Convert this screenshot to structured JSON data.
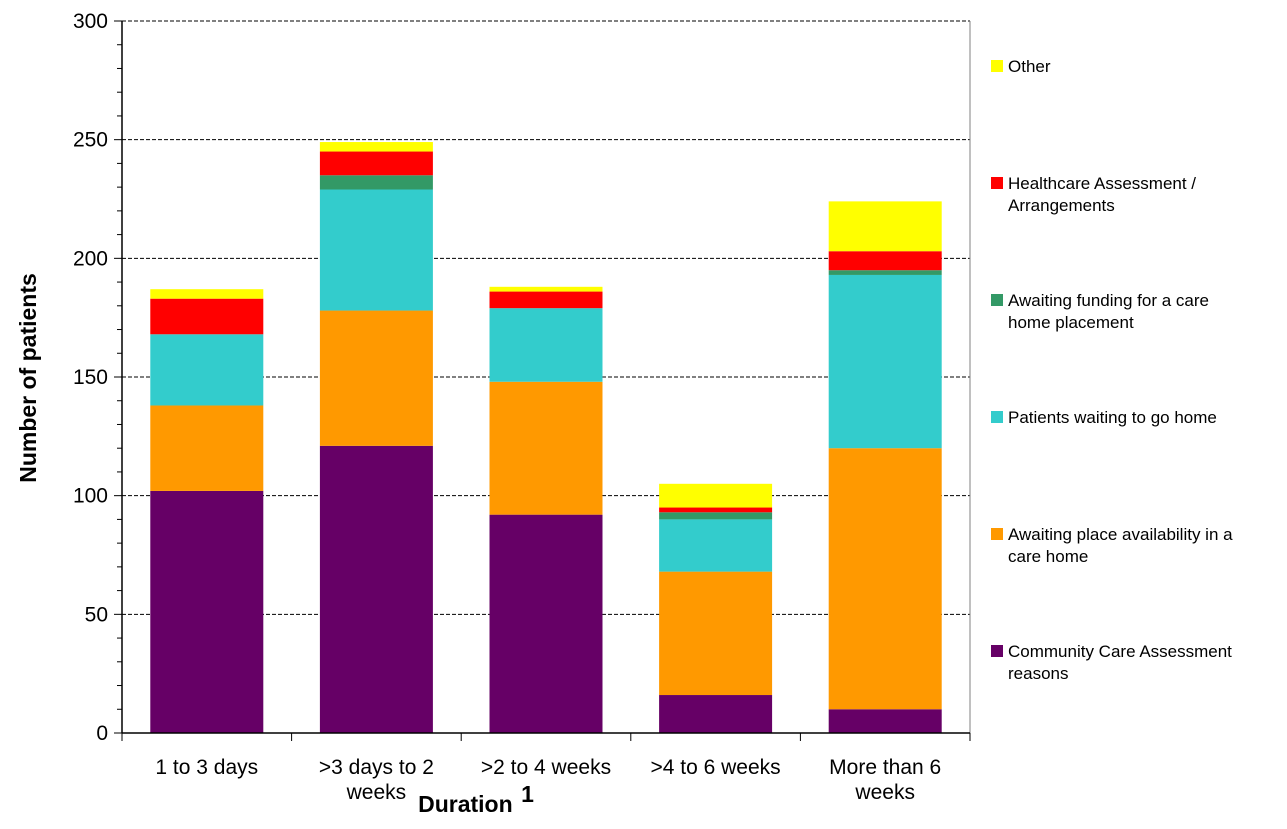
{
  "chart_data": {
    "type": "bar",
    "stacked": true,
    "title": "",
    "xlabel": "Duration",
    "xlabel_superscript": "1",
    "ylabel": "Number of patients",
    "ylim": [
      0,
      300
    ],
    "yticks": [
      0,
      50,
      100,
      150,
      200,
      250,
      300
    ],
    "grid": "horizontal dashed at major ticks",
    "legend_position": "right",
    "categories": [
      [
        "1 to 3 days"
      ],
      [
        ">3 days to 2",
        "weeks"
      ],
      [
        ">2 to 4 weeks"
      ],
      [
        ">4 to 6 weeks"
      ],
      [
        "More than 6",
        "weeks"
      ]
    ],
    "series": [
      {
        "name": [
          "Community Care Assessment",
          "reasons"
        ],
        "color": "#660066",
        "values": [
          102,
          121,
          92,
          16,
          10
        ]
      },
      {
        "name": [
          "Awaiting place availability in a",
          "care home"
        ],
        "color": "#FF9900",
        "values": [
          36,
          57,
          56,
          52,
          110
        ]
      },
      {
        "name": [
          "Patients waiting to go home"
        ],
        "color": "#33CCCC",
        "values": [
          30,
          51,
          31,
          22,
          73
        ]
      },
      {
        "name": [
          "Awaiting funding for a care",
          "home placement"
        ],
        "color": "#339966",
        "values": [
          0,
          6,
          0,
          3,
          2
        ]
      },
      {
        "name": [
          "Healthcare Assessment /",
          "Arrangements"
        ],
        "color": "#FF0000",
        "values": [
          15,
          10,
          7,
          2,
          8
        ]
      },
      {
        "name": [
          "Other"
        ],
        "color": "#FFFF00",
        "values": [
          4,
          4,
          2,
          10,
          21
        ]
      }
    ]
  }
}
